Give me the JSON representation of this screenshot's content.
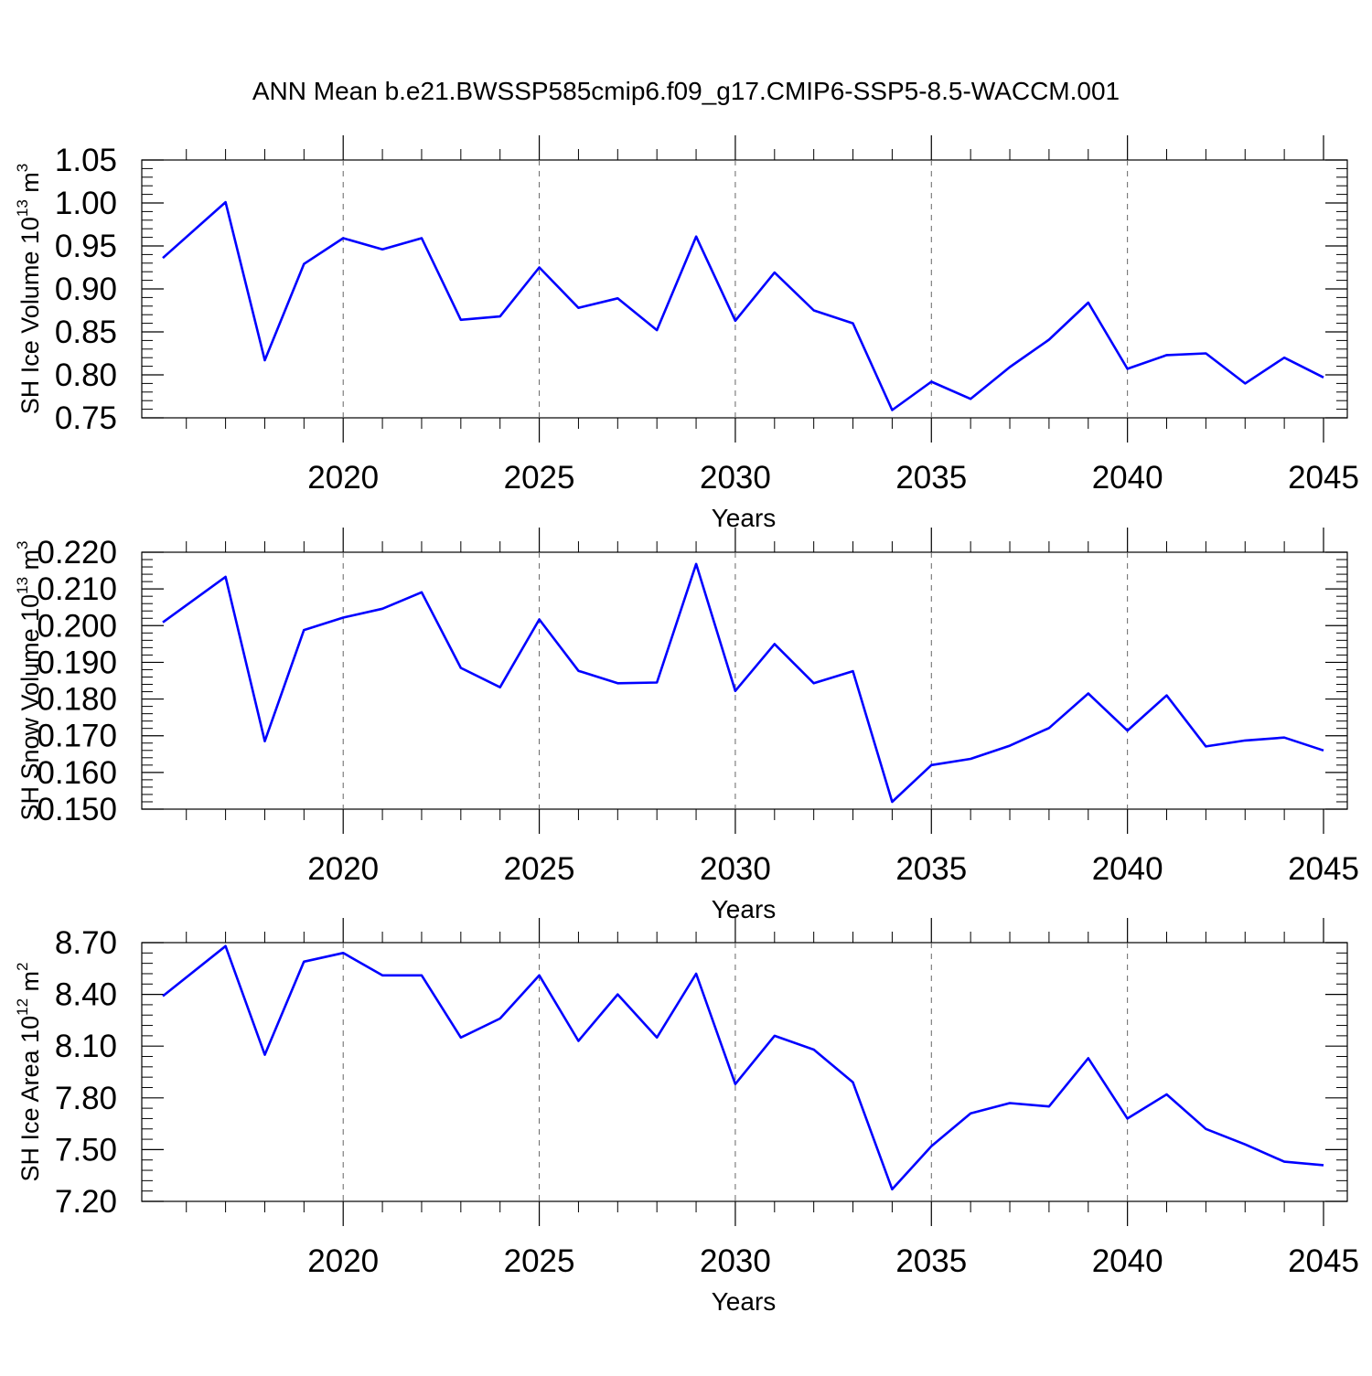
{
  "page": {
    "title": "ANN Mean b.e21.BWSSP585cmip6.f09_g17.CMIP6-SSP5-8.5-WACCM.001"
  },
  "chart_data": [
    {
      "type": "line",
      "title": "",
      "xlabel": "Years",
      "ylabel": {
        "prefix": "SH Ice Volume 10",
        "exponent": "13",
        "unit": " m",
        "unit_exponent": "3"
      },
      "xlim": [
        2015.4,
        2045
      ],
      "ylim": [
        0.75,
        1.05
      ],
      "x_ticks": [
        2020,
        2025,
        2030,
        2035,
        2040,
        2045
      ],
      "y_ticks": [
        "0.75",
        "0.80",
        "0.85",
        "0.90",
        "0.95",
        "1.00",
        "1.05"
      ],
      "grid": "vertical dashed at major x ticks",
      "line_color": "#0000ff",
      "x": [
        2015.4,
        2017,
        2018,
        2019,
        2020,
        2021,
        2022,
        2023,
        2024,
        2025,
        2026,
        2027,
        2028,
        2029,
        2030,
        2031,
        2032,
        2033,
        2034,
        2035,
        2036,
        2037,
        2038,
        2039,
        2040,
        2041,
        2042,
        2043,
        2044,
        2045
      ],
      "y": [
        0.936,
        1.001,
        0.817,
        0.929,
        0.959,
        0.946,
        0.959,
        0.864,
        0.868,
        0.925,
        0.878,
        0.889,
        0.852,
        0.961,
        0.863,
        0.919,
        0.875,
        0.86,
        0.759,
        0.792,
        0.772,
        0.809,
        0.841,
        0.884,
        0.807,
        0.823,
        0.825,
        0.79,
        0.82,
        0.797
      ]
    },
    {
      "type": "line",
      "title": "",
      "xlabel": "Years",
      "ylabel": {
        "prefix": "SH Snow Volume 10",
        "exponent": "13",
        "unit": " m",
        "unit_exponent": "3"
      },
      "xlim": [
        2015.4,
        2045
      ],
      "ylim": [
        0.15,
        0.22
      ],
      "x_ticks": [
        2020,
        2025,
        2030,
        2035,
        2040,
        2045
      ],
      "y_ticks": [
        "0.150",
        "0.160",
        "0.170",
        "0.180",
        "0.190",
        "0.200",
        "0.210",
        "0.220"
      ],
      "grid": "vertical dashed at major x ticks",
      "line_color": "#0000ff",
      "x": [
        2015.4,
        2017,
        2018,
        2019,
        2020,
        2021,
        2022,
        2023,
        2024,
        2025,
        2026,
        2027,
        2028,
        2029,
        2030,
        2031,
        2032,
        2033,
        2034,
        2035,
        2036,
        2037,
        2038,
        2039,
        2040,
        2041,
        2042,
        2043,
        2044,
        2045
      ],
      "y": [
        0.2009,
        0.2133,
        0.1685,
        0.1988,
        0.2022,
        0.2046,
        0.2091,
        0.1885,
        0.1832,
        0.2017,
        0.1877,
        0.1843,
        0.1845,
        0.2168,
        0.1822,
        0.195,
        0.1843,
        0.1876,
        0.152,
        0.162,
        0.1637,
        0.1673,
        0.1721,
        0.1815,
        0.1714,
        0.181,
        0.1671,
        0.1687,
        0.1695,
        0.166
      ]
    },
    {
      "type": "line",
      "title": "",
      "xlabel": "Years",
      "ylabel": {
        "prefix": "SH Ice Area 10",
        "exponent": "12",
        "unit": " m",
        "unit_exponent": "2"
      },
      "xlim": [
        2015.4,
        2045
      ],
      "ylim": [
        7.2,
        8.7
      ],
      "x_ticks": [
        2020,
        2025,
        2030,
        2035,
        2040,
        2045
      ],
      "y_ticks": [
        "7.20",
        "7.50",
        "7.80",
        "8.10",
        "8.40",
        "8.70"
      ],
      "grid": "vertical dashed at major x ticks",
      "line_color": "#0000ff",
      "x": [
        2015.4,
        2017,
        2018,
        2019,
        2020,
        2021,
        2022,
        2023,
        2024,
        2025,
        2026,
        2027,
        2028,
        2029,
        2030,
        2031,
        2032,
        2033,
        2034,
        2035,
        2036,
        2037,
        2038,
        2039,
        2040,
        2041,
        2042,
        2043,
        2044,
        2045
      ],
      "y": [
        8.39,
        8.68,
        8.05,
        8.59,
        8.64,
        8.51,
        8.51,
        8.15,
        8.26,
        8.51,
        8.13,
        8.4,
        8.15,
        8.52,
        7.88,
        8.16,
        8.08,
        7.89,
        7.27,
        7.52,
        7.71,
        7.77,
        7.75,
        8.03,
        7.68,
        7.82,
        7.62,
        7.53,
        7.43,
        7.41
      ]
    }
  ]
}
